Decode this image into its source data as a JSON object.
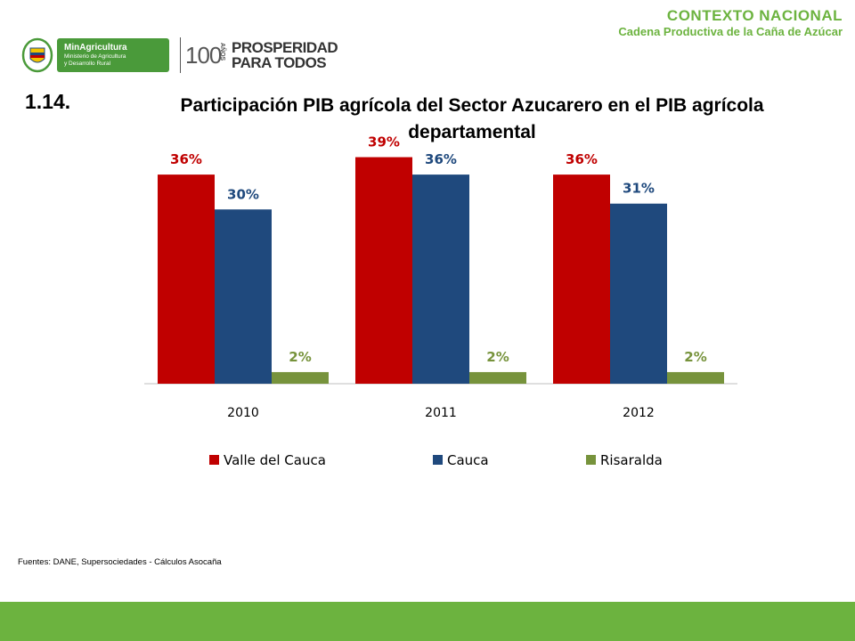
{
  "header": {
    "section_title": "CONTEXTO NACIONAL",
    "section_subtitle": "Cadena Productiva de la Caña de Azúcar"
  },
  "logos": {
    "ministry_name": "MinAgricultura",
    "ministry_desc_1": "Ministerio de Agricultura",
    "ministry_desc_2": "y Desarrollo Rural",
    "years_number": "100",
    "years_suffix": "AÑOS",
    "slogan_line1": "PROSPERIDAD",
    "slogan_line2": "PARA TODOS"
  },
  "slide": {
    "number": "1.14.",
    "title_line1": "Participación PIB agrícola del Sector Azucarero en el PIB agrícola",
    "title_line2": "departamental"
  },
  "source_note": "Fuentes: DANE, Supersociedades - Cálculos Asocaña",
  "chart_data": {
    "type": "bar",
    "categories": [
      "2010",
      "2011",
      "2012"
    ],
    "series": [
      {
        "name": "Valle del Cauca",
        "values": [
          36,
          39,
          36
        ],
        "labels": [
          "36%",
          "39%",
          "36%"
        ],
        "color": "#c00000"
      },
      {
        "name": "Cauca",
        "values": [
          30,
          36,
          31
        ],
        "labels": [
          "30%",
          "36%",
          "31%"
        ],
        "color": "#1f497d"
      },
      {
        "name": "Risaralda",
        "values": [
          2,
          2,
          2
        ],
        "labels": [
          "2%",
          "2%",
          "2%"
        ],
        "color": "#77933c"
      }
    ],
    "ylim": [
      0,
      40
    ],
    "grid": false,
    "legend": "bottom",
    "title": "",
    "xlabel": "",
    "ylabel": ""
  },
  "colors": {
    "accent_green": "#6cb33f",
    "footer": "#6cb33f"
  }
}
